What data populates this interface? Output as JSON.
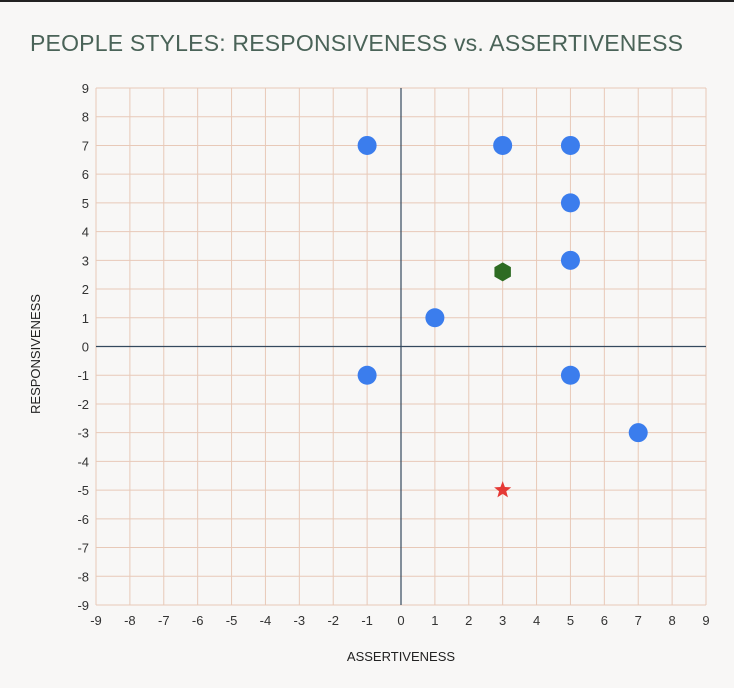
{
  "chart_data": {
    "type": "scatter",
    "title": "PEOPLE STYLES: RESPONSIVENESS vs. ASSERTIVENESS",
    "xlabel": "ASSERTIVENESS",
    "ylabel": "RESPONSIVENESS",
    "xlim": [
      -9,
      9
    ],
    "ylim": [
      -9,
      9
    ],
    "xticks": [
      -9,
      -8,
      -7,
      -6,
      -5,
      -4,
      -3,
      -2,
      -1,
      0,
      1,
      2,
      3,
      4,
      5,
      6,
      7,
      8,
      9
    ],
    "yticks": [
      -9,
      -8,
      -7,
      -6,
      -5,
      -4,
      -3,
      -2,
      -1,
      0,
      1,
      2,
      3,
      4,
      5,
      6,
      7,
      8,
      9
    ],
    "grid": true,
    "series": [
      {
        "marker": "circle",
        "color": "#3b7ded",
        "points": [
          {
            "x": -1,
            "y": 7
          },
          {
            "x": 3,
            "y": 7
          },
          {
            "x": 5,
            "y": 7
          },
          {
            "x": 5,
            "y": 5
          },
          {
            "x": 5,
            "y": 3
          },
          {
            "x": 1,
            "y": 1
          },
          {
            "x": -1,
            "y": -1
          },
          {
            "x": 5,
            "y": -1
          },
          {
            "x": 7,
            "y": -3
          }
        ]
      },
      {
        "marker": "hexagon",
        "color": "#2e6b22",
        "points": [
          {
            "x": 3,
            "y": 2.6
          }
        ]
      },
      {
        "marker": "star",
        "color": "#e53935",
        "points": [
          {
            "x": 3,
            "y": -5
          }
        ]
      }
    ],
    "colors": {
      "grid": "#e8c9b8",
      "axis": "#34495e",
      "title": "#4a6358"
    }
  }
}
